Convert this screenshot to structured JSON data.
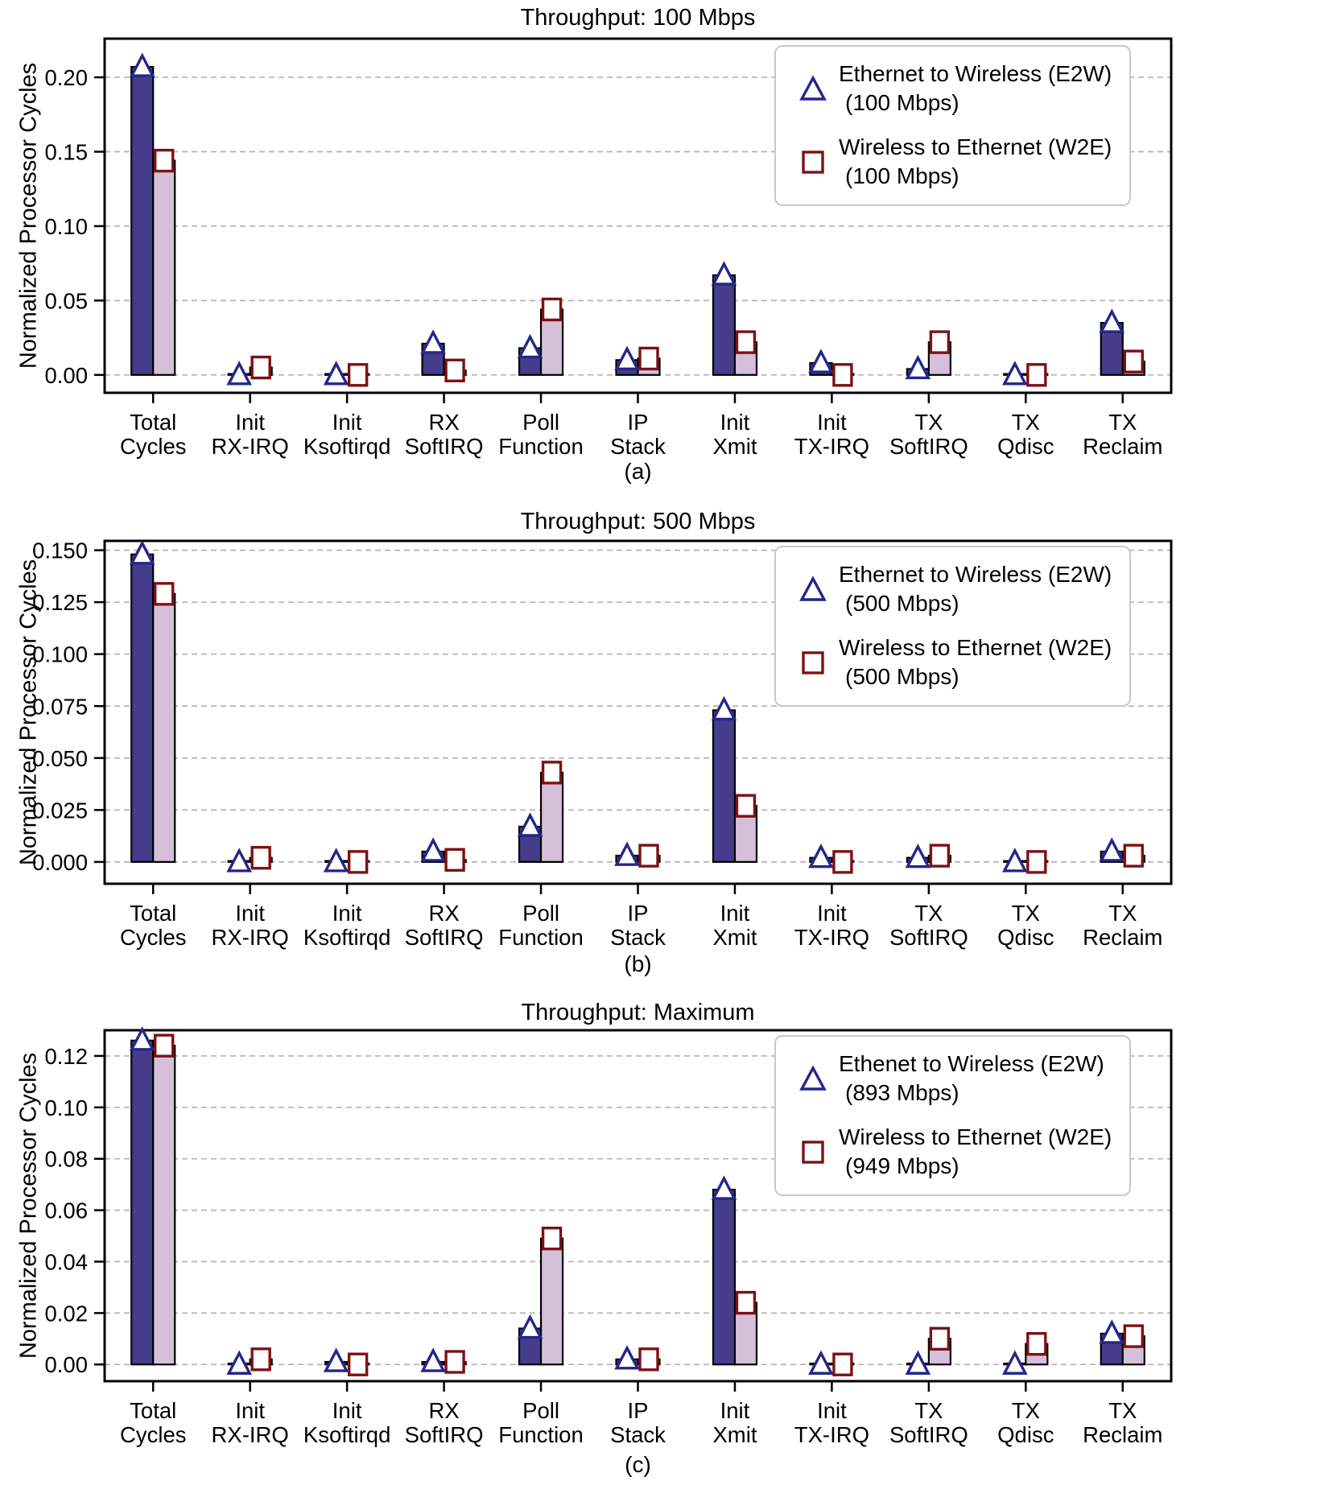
{
  "figure": {
    "ylabel": "Normalized Processor Cycles",
    "colors": {
      "e2w_bar": "#453c8b",
      "w2e_bar": "#d5bfd9",
      "bar_edge": "#000000",
      "e2w_marker_edge": "#23278a",
      "w2e_marker_edge": "#7d1113",
      "marker_fill": "#ffffff",
      "grid": "#b3b3b3",
      "axis": "#000000",
      "legend_border": "#c8c8c8",
      "text": "#000000"
    }
  },
  "chart_data": [
    {
      "type": "bar",
      "title": "Throughput: 100 Mbps",
      "sublabel": "(a)",
      "ylabel": "Normalized Processor Cycles",
      "xlabel": "",
      "grid": "dashed-horizontal",
      "legend_position": "upper right",
      "categories": [
        [
          "Total",
          "Cycles"
        ],
        [
          "Init",
          "RX-IRQ"
        ],
        [
          "Init",
          "Ksoftirqd"
        ],
        [
          "RX",
          "SoftIRQ"
        ],
        [
          "Poll",
          "Function"
        ],
        [
          "IP",
          "Stack"
        ],
        [
          "Init",
          "Xmit"
        ],
        [
          "Init",
          "TX-IRQ"
        ],
        [
          "TX",
          "SoftIRQ"
        ],
        [
          "TX",
          "Qdisc"
        ],
        [
          "TX",
          "Reclaim"
        ]
      ],
      "series": [
        {
          "name": "Ethernet to Wireless (E2W)",
          "qualifier": "(100 Mbps)",
          "marker": "triangle",
          "values": [
            0.207,
            0.0,
            0.0,
            0.021,
            0.018,
            0.01,
            0.067,
            0.008,
            0.004,
            0.0,
            0.035
          ]
        },
        {
          "name": "Wireless to Ethernet (W2E)",
          "qualifier": "(100 Mbps)",
          "marker": "square",
          "values": [
            0.144,
            0.005,
            0.0,
            0.003,
            0.044,
            0.011,
            0.022,
            0.0,
            0.022,
            0.0,
            0.009
          ]
        }
      ],
      "ylim": [
        -0.012,
        0.226
      ],
      "ytick_values": [
        0.0,
        0.05,
        0.1,
        0.15,
        0.2
      ],
      "ytick_labels": [
        "0.00",
        "0.05",
        "0.10",
        "0.15",
        "0.20"
      ]
    },
    {
      "type": "bar",
      "title": "Throughput: 500 Mbps",
      "sublabel": "(b)",
      "ylabel": "Normalized Processor Cycles",
      "xlabel": "",
      "grid": "dashed-horizontal",
      "legend_position": "upper right",
      "categories": [
        [
          "Total",
          "Cycles"
        ],
        [
          "Init",
          "RX-IRQ"
        ],
        [
          "Init",
          "Ksoftirqd"
        ],
        [
          "RX",
          "SoftIRQ"
        ],
        [
          "Poll",
          "Function"
        ],
        [
          "IP",
          "Stack"
        ],
        [
          "Init",
          "Xmit"
        ],
        [
          "Init",
          "TX-IRQ"
        ],
        [
          "TX",
          "SoftIRQ"
        ],
        [
          "TX",
          "Qdisc"
        ],
        [
          "TX",
          "Reclaim"
        ]
      ],
      "series": [
        {
          "name": "Ethernet to Wireless (E2W)",
          "qualifier": "(500 Mbps)",
          "marker": "triangle",
          "values": [
            0.148,
            0.0,
            0.0,
            0.005,
            0.017,
            0.003,
            0.073,
            0.002,
            0.002,
            0.0,
            0.005
          ]
        },
        {
          "name": "Wireless to Ethernet (W2E)",
          "qualifier": "(500 Mbps)",
          "marker": "square",
          "values": [
            0.129,
            0.002,
            0.0,
            0.001,
            0.043,
            0.003,
            0.027,
            0.0,
            0.003,
            0.0,
            0.003
          ]
        }
      ],
      "ylim": [
        -0.0105,
        0.1545
      ],
      "ytick_values": [
        0.0,
        0.025,
        0.05,
        0.075,
        0.1,
        0.125,
        0.15
      ],
      "ytick_labels": [
        "0.000",
        "0.025",
        "0.050",
        "0.075",
        "0.100",
        "0.125",
        "0.150"
      ]
    },
    {
      "type": "bar",
      "title": "Throughput: Maximum",
      "sublabel": "(c)",
      "ylabel": "Normalized Processor Cycles",
      "xlabel": "",
      "grid": "dashed-horizontal",
      "legend_position": "upper right",
      "categories": [
        [
          "Total",
          "Cycles"
        ],
        [
          "Init",
          "RX-IRQ"
        ],
        [
          "Init",
          "Ksoftirqd"
        ],
        [
          "RX",
          "SoftIRQ"
        ],
        [
          "Poll",
          "Function"
        ],
        [
          "IP",
          "Stack"
        ],
        [
          "Init",
          "Xmit"
        ],
        [
          "Init",
          "TX-IRQ"
        ],
        [
          "TX",
          "SoftIRQ"
        ],
        [
          "TX",
          "Qdisc"
        ],
        [
          "TX",
          "Reclaim"
        ]
      ],
      "series": [
        {
          "name": "Ethenet to Wireless (E2W)",
          "qualifier": "(893 Mbps)",
          "marker": "triangle",
          "values": [
            0.126,
            0.0,
            0.001,
            0.001,
            0.014,
            0.002,
            0.068,
            0.0,
            0.0,
            0.0,
            0.012
          ]
        },
        {
          "name": "Wireless to Ethernet (W2E)",
          "qualifier": "(949 Mbps)",
          "marker": "square",
          "values": [
            0.124,
            0.002,
            0.0,
            0.001,
            0.049,
            0.002,
            0.024,
            0.0,
            0.01,
            0.008,
            0.011
          ]
        }
      ],
      "ylim": [
        -0.0065,
        0.13
      ],
      "ytick_values": [
        0.0,
        0.02,
        0.04,
        0.06,
        0.08,
        0.1,
        0.12
      ],
      "ytick_labels": [
        "0.00",
        "0.02",
        "0.04",
        "0.06",
        "0.08",
        "0.10",
        "0.12"
      ]
    }
  ]
}
